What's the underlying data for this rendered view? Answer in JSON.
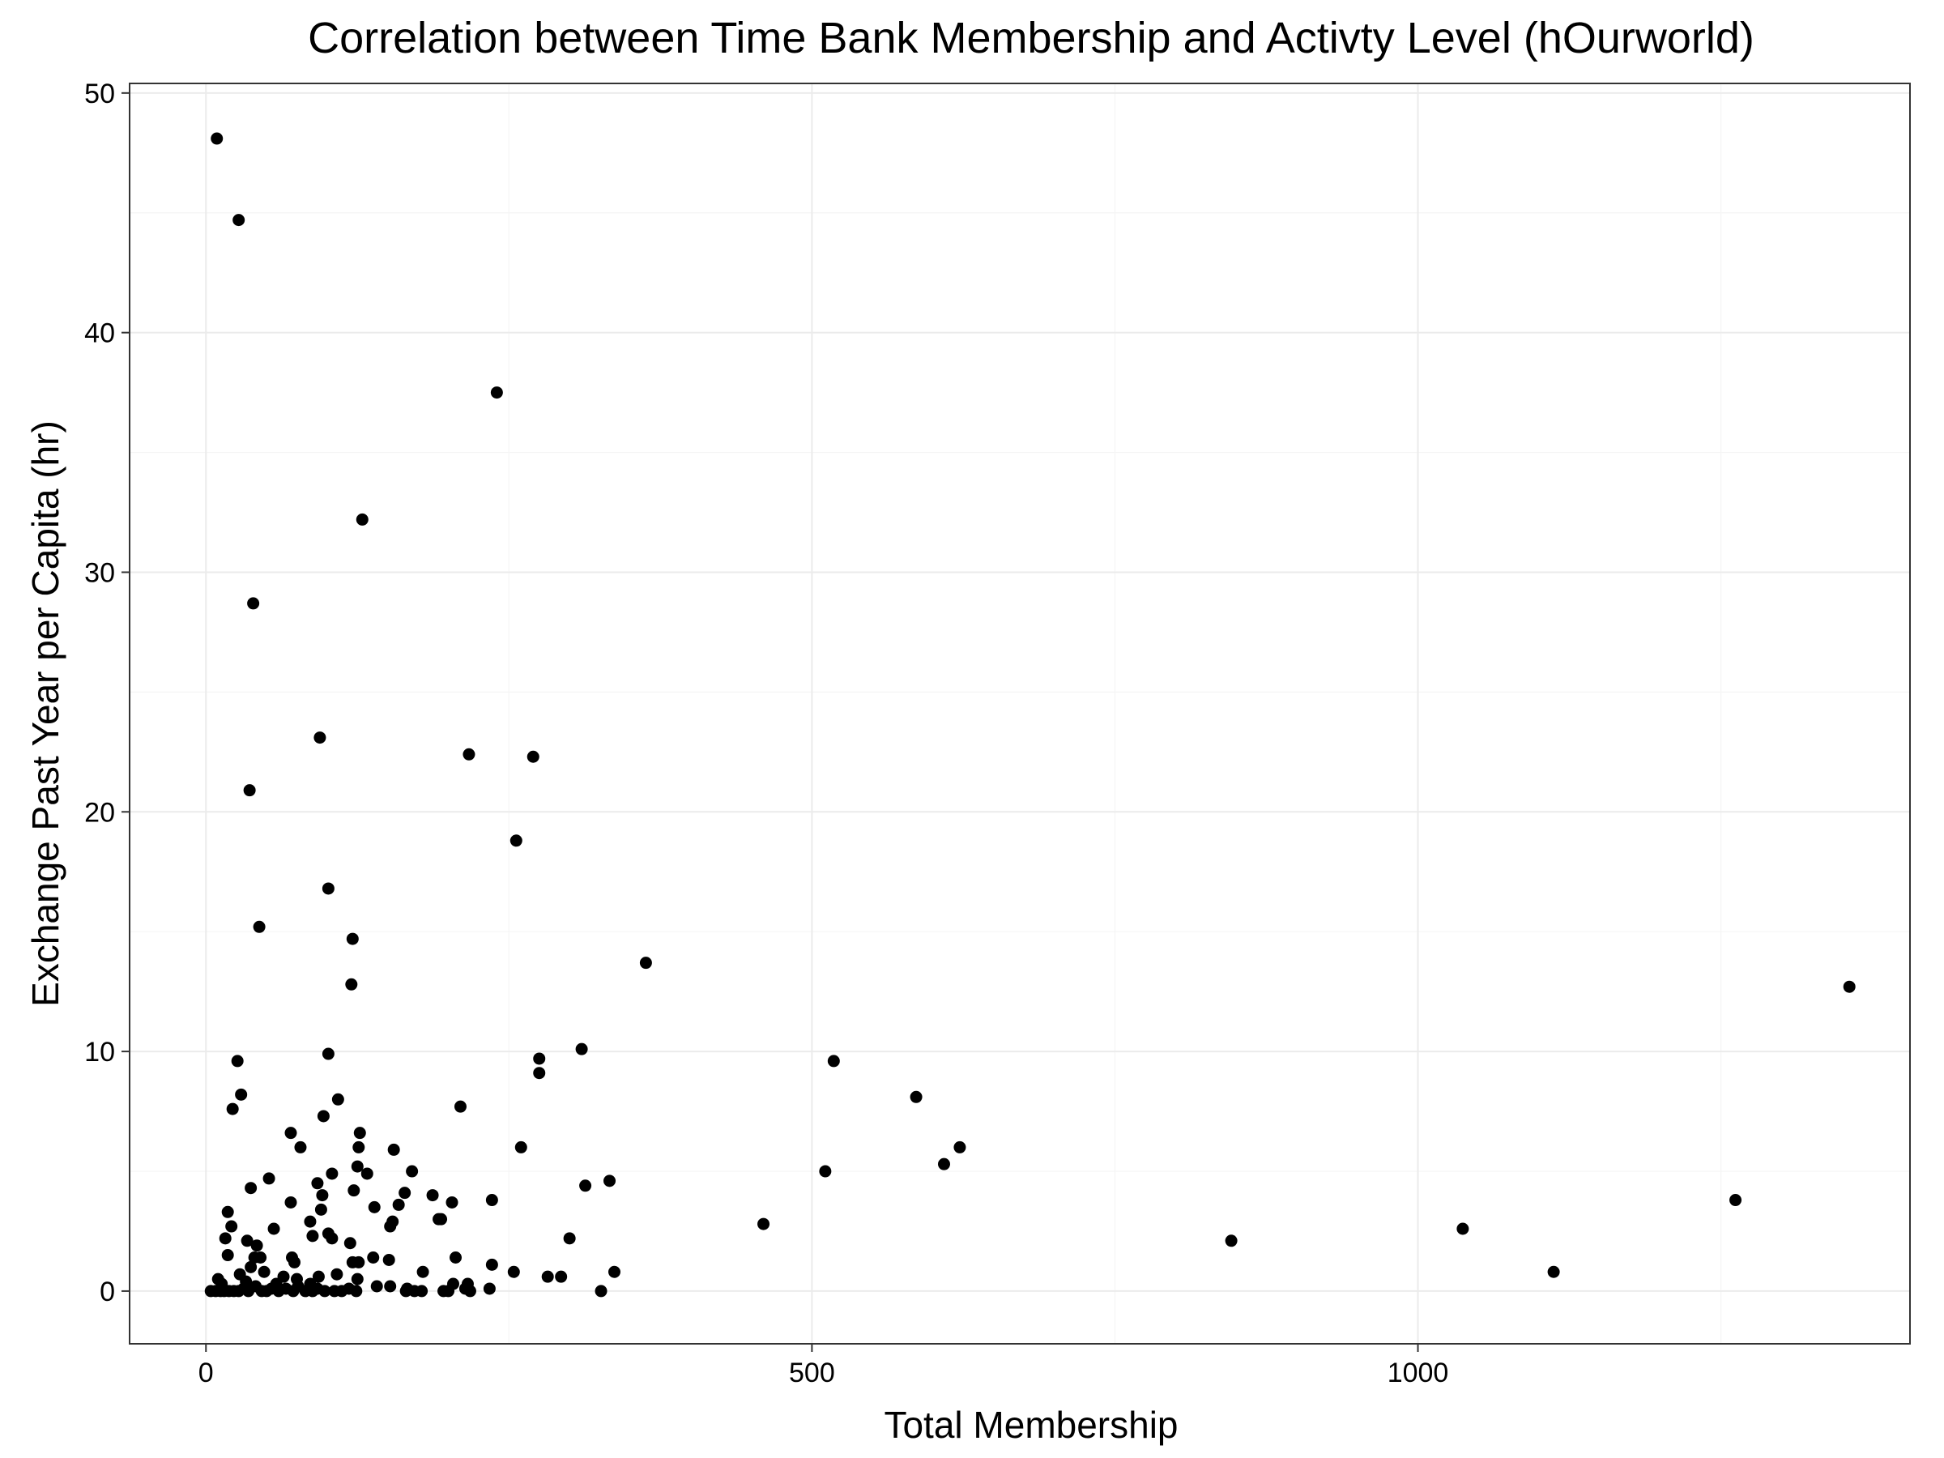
{
  "chart_data": {
    "type": "scatter",
    "title": "Correlation between Time Bank Membership and Activty Level (hOurworld)",
    "xlabel": "Total Membership",
    "ylabel": "Exchange Past Year per Capita (hr)",
    "xlim": [
      -63,
      1406
    ],
    "ylim": [
      -2.2,
      50.4
    ],
    "xticks": [
      0,
      500,
      1000
    ],
    "yticks": [
      0,
      10,
      20,
      30,
      40,
      50
    ],
    "xtick_labels": [
      "0",
      "500",
      "1000"
    ],
    "ytick_labels": [
      "0",
      "10",
      "20",
      "30",
      "40",
      "50"
    ],
    "grid": true,
    "legend": "none",
    "point_color": "#000000",
    "points": [
      [
        9,
        48.1
      ],
      [
        27,
        44.7
      ],
      [
        240,
        37.5
      ],
      [
        129,
        32.2
      ],
      [
        39,
        28.7
      ],
      [
        94,
        23.1
      ],
      [
        36,
        20.9
      ],
      [
        217,
        22.4
      ],
      [
        270,
        22.3
      ],
      [
        256,
        18.8
      ],
      [
        101,
        16.8
      ],
      [
        44,
        15.2
      ],
      [
        121,
        14.7
      ],
      [
        120,
        12.8
      ],
      [
        363,
        13.7
      ],
      [
        26,
        9.6
      ],
      [
        101,
        9.9
      ],
      [
        275,
        9.7
      ],
      [
        275,
        9.1
      ],
      [
        310,
        10.1
      ],
      [
        518,
        9.6
      ],
      [
        29,
        8.2
      ],
      [
        22,
        7.6
      ],
      [
        109,
        8.0
      ],
      [
        97,
        7.3
      ],
      [
        210,
        7.7
      ],
      [
        586,
        8.1
      ],
      [
        1356,
        12.7
      ],
      [
        70,
        6.6
      ],
      [
        78,
        6.0
      ],
      [
        127,
        6.6
      ],
      [
        126,
        6.0
      ],
      [
        155,
        5.9
      ],
      [
        260,
        6.0
      ],
      [
        622,
        6.0
      ],
      [
        609,
        5.3
      ],
      [
        125,
        5.2
      ],
      [
        133,
        4.9
      ],
      [
        104,
        4.9
      ],
      [
        170,
        5.0
      ],
      [
        511,
        5.0
      ],
      [
        52,
        4.7
      ],
      [
        37,
        4.3
      ],
      [
        92,
        4.5
      ],
      [
        96,
        4.0
      ],
      [
        122,
        4.2
      ],
      [
        164,
        4.1
      ],
      [
        187,
        4.0
      ],
      [
        313,
        4.4
      ],
      [
        333,
        4.6
      ],
      [
        70,
        3.7
      ],
      [
        95,
        3.4
      ],
      [
        139,
        3.5
      ],
      [
        159,
        3.6
      ],
      [
        203,
        3.7
      ],
      [
        236,
        3.8
      ],
      [
        1262,
        3.8
      ],
      [
        18,
        3.3
      ],
      [
        21,
        2.7
      ],
      [
        86,
        2.9
      ],
      [
        154,
        2.9
      ],
      [
        152,
        2.7
      ],
      [
        192,
        3.0
      ],
      [
        194,
        3.0
      ],
      [
        460,
        2.8
      ],
      [
        1037,
        2.6
      ],
      [
        56,
        2.6
      ],
      [
        16,
        2.2
      ],
      [
        34,
        2.1
      ],
      [
        42,
        1.9
      ],
      [
        88,
        2.3
      ],
      [
        101,
        2.4
      ],
      [
        104,
        2.2
      ],
      [
        119,
        2.0
      ],
      [
        300,
        2.2
      ],
      [
        846,
        2.1
      ],
      [
        18,
        1.5
      ],
      [
        40,
        1.4
      ],
      [
        45,
        1.4
      ],
      [
        71,
        1.4
      ],
      [
        73,
        1.2
      ],
      [
        121,
        1.2
      ],
      [
        126,
        1.2
      ],
      [
        138,
        1.4
      ],
      [
        151,
        1.3
      ],
      [
        206,
        1.4
      ],
      [
        236,
        1.1
      ],
      [
        37,
        1.0
      ],
      [
        48,
        0.8
      ],
      [
        28,
        0.7
      ],
      [
        108,
        0.7
      ],
      [
        179,
        0.8
      ],
      [
        254,
        0.8
      ],
      [
        337,
        0.8
      ],
      [
        1112,
        0.8
      ],
      [
        282,
        0.6
      ],
      [
        293,
        0.6
      ],
      [
        10,
        0.5
      ],
      [
        64,
        0.6
      ],
      [
        93,
        0.6
      ],
      [
        75,
        0.5
      ],
      [
        125,
        0.5
      ],
      [
        204,
        0.3
      ],
      [
        216,
        0.3
      ],
      [
        58,
        0.3
      ],
      [
        4,
        0.0
      ],
      [
        8,
        0.0
      ],
      [
        12,
        0.0
      ],
      [
        15,
        0.0
      ],
      [
        19,
        0.0
      ],
      [
        23,
        0.0
      ],
      [
        27,
        0.0
      ],
      [
        31,
        0.1
      ],
      [
        35,
        0.0
      ],
      [
        41,
        0.2
      ],
      [
        46,
        0.0
      ],
      [
        50,
        0.0
      ],
      [
        54,
        0.1
      ],
      [
        60,
        0.0
      ],
      [
        66,
        0.1
      ],
      [
        72,
        0.0
      ],
      [
        76,
        0.2
      ],
      [
        82,
        0.0
      ],
      [
        88,
        0.0
      ],
      [
        92,
        0.1
      ],
      [
        98,
        0.0
      ],
      [
        106,
        0.0
      ],
      [
        112,
        0.0
      ],
      [
        118,
        0.1
      ],
      [
        124,
        0.0
      ],
      [
        152,
        0.2
      ],
      [
        165,
        0.0
      ],
      [
        172,
        0.0
      ],
      [
        178,
        0.0
      ],
      [
        196,
        0.0
      ],
      [
        200,
        0.0
      ],
      [
        214,
        0.1
      ],
      [
        234,
        0.1
      ],
      [
        326,
        0.0
      ],
      [
        13,
        0.3
      ],
      [
        33,
        0.4
      ],
      [
        86,
        0.3
      ],
      [
        141,
        0.2
      ],
      [
        166,
        0.1
      ],
      [
        218,
        0.0
      ]
    ]
  }
}
